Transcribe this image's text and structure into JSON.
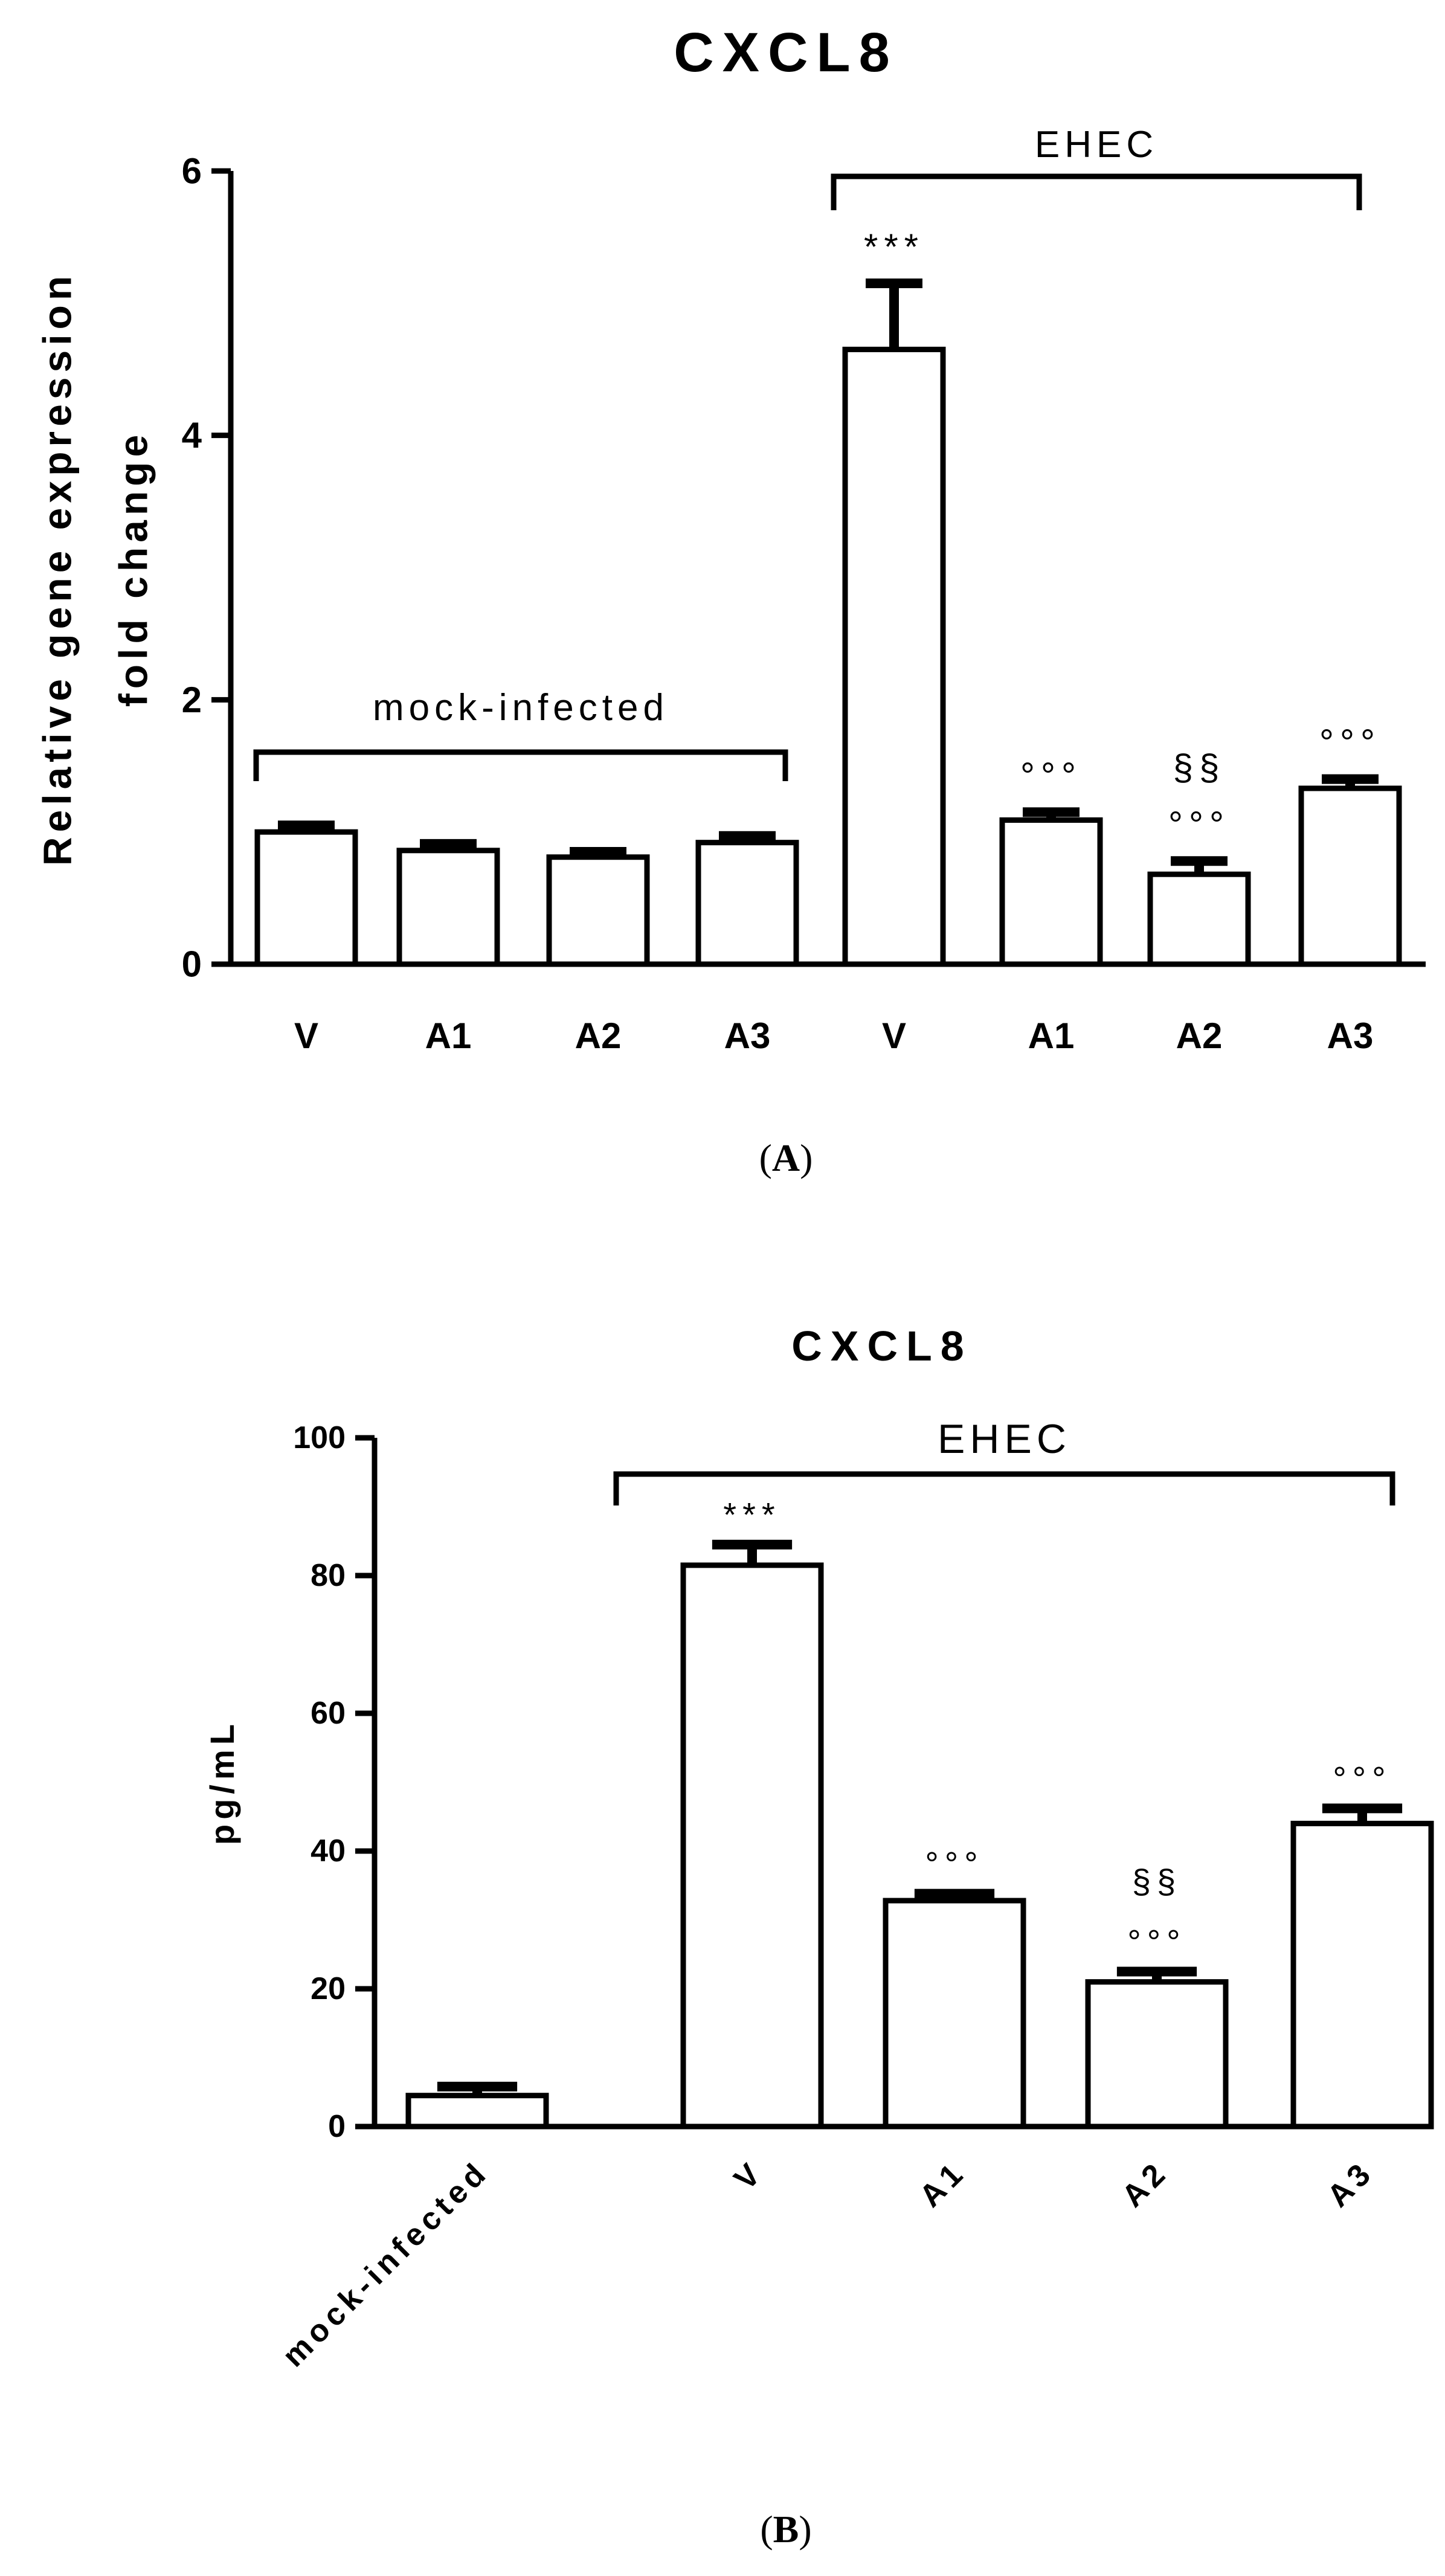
{
  "panel_labels": {
    "a_open": "(",
    "a": "A",
    "a_close": ")",
    "b_open": "(",
    "b": "B",
    "b_close": ")"
  },
  "chart_data": [
    {
      "type": "bar",
      "title": "CXCL8",
      "ylabel": [
        "Relative gene expression",
        "fold change"
      ],
      "xlabel": "",
      "ylim": [
        0,
        6
      ],
      "yticks": [
        0,
        2,
        4,
        6
      ],
      "categories": [
        "V",
        "A1",
        "A2",
        "A3",
        "V",
        "A1",
        "A2",
        "A3"
      ],
      "values": [
        1.0,
        0.86,
        0.81,
        0.92,
        4.65,
        1.09,
        0.68,
        1.33
      ],
      "errors": [
        0.05,
        0.05,
        0.04,
        0.05,
        0.5,
        0.06,
        0.1,
        0.07
      ],
      "groups": [
        {
          "label": "mock-infected",
          "from": 0,
          "to": 3
        },
        {
          "label": "EHEC",
          "from": 4,
          "to": 7
        }
      ],
      "annotations": [
        {
          "index": 4,
          "lines": [
            "***"
          ]
        },
        {
          "index": 5,
          "lines": [
            "°°°"
          ]
        },
        {
          "index": 6,
          "lines": [
            "§§",
            "°°°"
          ]
        },
        {
          "index": 7,
          "lines": [
            "°°°"
          ]
        }
      ]
    },
    {
      "type": "bar",
      "title": "CXCL8",
      "ylabel": [
        "pg/mL"
      ],
      "xlabel": "",
      "ylim": [
        0,
        100
      ],
      "yticks": [
        0,
        20,
        40,
        60,
        80,
        100
      ],
      "categories": [
        "mock-infected",
        "V",
        "A1",
        "A2",
        "A3"
      ],
      "values": [
        4.5,
        81.5,
        32.8,
        21.0,
        44.0
      ],
      "errors": [
        1.3,
        3.0,
        1.0,
        1.5,
        2.2
      ],
      "groups": [
        {
          "label": "EHEC",
          "from": 1,
          "to": 4
        }
      ],
      "annotations": [
        {
          "index": 1,
          "lines": [
            "***"
          ]
        },
        {
          "index": 2,
          "lines": [
            "°°°"
          ]
        },
        {
          "index": 3,
          "lines": [
            "§§",
            "°°°"
          ]
        },
        {
          "index": 4,
          "lines": [
            "°°°"
          ]
        }
      ]
    }
  ]
}
